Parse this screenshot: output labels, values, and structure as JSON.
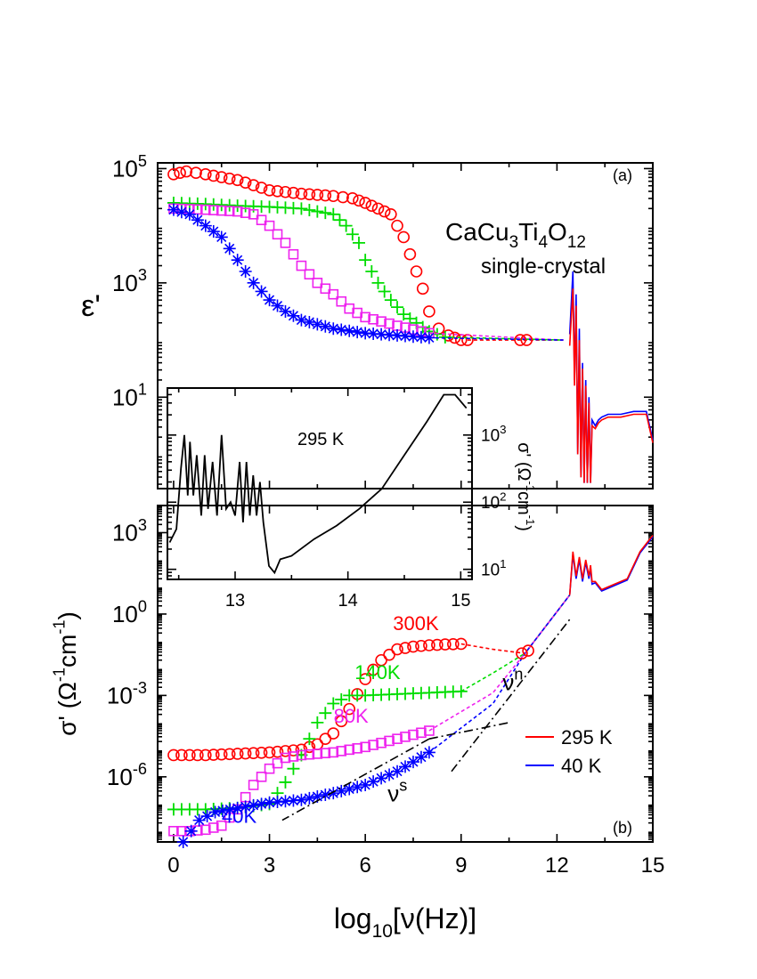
{
  "chart_data": [
    {
      "panel": "(a)",
      "type": "scatter",
      "ylabel": "ε'",
      "yscale": "log",
      "ylim_log10": [
        -0.6,
        5.1
      ],
      "yticks": [
        {
          "label": "10",
          "sup": "5",
          "log": 5
        },
        {
          "label": "10",
          "sup": "3",
          "log": 3
        },
        {
          "label": "10",
          "sup": "1",
          "log": 1
        }
      ],
      "xlim": [
        -0.5,
        15
      ],
      "xticks": [
        0,
        3,
        6,
        9,
        12,
        15
      ],
      "annotation_material": [
        "CaCu",
        "3",
        "Ti",
        "4",
        "O",
        "12"
      ],
      "annotation_sub": "single-crystal",
      "series": [
        {
          "temp": "295 K",
          "marker": "circle",
          "color": "#ff0000",
          "x": [
            0.0,
            0.4,
            1.0,
            2.0,
            3.0,
            4.0,
            5.0,
            5.6,
            6.0,
            6.4,
            6.8,
            7.0,
            7.2,
            7.4,
            7.6,
            7.8,
            8.0,
            8.3,
            8.6,
            9.0,
            9.2
          ],
          "y": [
            4.9,
            4.95,
            4.9,
            4.8,
            4.62,
            4.56,
            4.52,
            4.48,
            4.4,
            4.3,
            4.2,
            4.0,
            3.8,
            3.5,
            3.2,
            2.9,
            2.5,
            2.2,
            2.08,
            2.0,
            2.0
          ]
        },
        {
          "temp": "140 K",
          "marker": "plus",
          "color": "#00dd00",
          "x": [
            0.0,
            1.0,
            2.0,
            3.0,
            4.0,
            4.5,
            5.0,
            5.4,
            5.8,
            6.0,
            6.4,
            6.8,
            7.2,
            7.6,
            8.0,
            8.5
          ],
          "y": [
            4.4,
            4.38,
            4.35,
            4.33,
            4.3,
            4.25,
            4.2,
            4.0,
            3.7,
            3.4,
            3.0,
            2.7,
            2.45,
            2.3,
            2.15,
            2.05
          ]
        },
        {
          "temp": "80 K",
          "marker": "square",
          "color": "#ee22ee",
          "x": [
            0.0,
            1.0,
            2.0,
            2.5,
            3.0,
            3.5,
            4.0,
            4.5,
            5.0,
            5.5,
            6.0,
            7.0,
            8.0
          ],
          "y": [
            4.3,
            4.28,
            4.25,
            4.2,
            4.0,
            3.7,
            3.3,
            3.0,
            2.8,
            2.55,
            2.4,
            2.25,
            2.12
          ]
        },
        {
          "temp": "40 K",
          "marker": "star",
          "color": "#0000ff",
          "x": [
            0.0,
            0.5,
            1.0,
            1.5,
            2.0,
            2.5,
            3.0,
            3.5,
            4.0,
            5.0,
            6.0,
            7.0,
            8.0
          ],
          "y": [
            4.28,
            4.2,
            4.0,
            3.8,
            3.4,
            3.0,
            2.7,
            2.5,
            2.35,
            2.2,
            2.12,
            2.08,
            2.04
          ]
        }
      ],
      "optical_curves": [
        {
          "temp": "295 K",
          "color": "#ff0000",
          "x": [
            12.4,
            12.5,
            12.55,
            12.6,
            12.65,
            12.7,
            12.75,
            12.8,
            12.85,
            12.9,
            12.95,
            13.0,
            13.05,
            13.1,
            13.2,
            13.3,
            13.4,
            13.6,
            14.0,
            14.4,
            14.8,
            15.0
          ],
          "y": [
            1.9,
            2.9,
            1.2,
            2.6,
            0.0,
            2.0,
            -0.4,
            1.5,
            -0.5,
            1.2,
            -0.5,
            0.9,
            -0.5,
            0.5,
            0.45,
            0.55,
            0.6,
            0.65,
            0.65,
            0.7,
            0.7,
            0.2
          ]
        },
        {
          "temp": "40 K",
          "color": "#0000ff",
          "x": [
            12.4,
            12.5,
            12.55,
            12.6,
            12.65,
            12.7,
            12.75,
            12.8,
            12.85,
            12.9,
            12.95,
            13.0,
            13.05,
            13.1,
            13.2,
            13.3,
            13.4,
            13.6,
            14.0,
            14.4,
            14.8,
            15.0
          ],
          "y": [
            2.1,
            3.2,
            1.3,
            2.8,
            0.0,
            2.2,
            -0.4,
            1.6,
            -0.5,
            1.3,
            -0.5,
            1.0,
            -0.5,
            0.6,
            0.5,
            0.6,
            0.65,
            0.7,
            0.7,
            0.75,
            0.75,
            0.25
          ]
        }
      ]
    },
    {
      "panel": "(b)",
      "type": "scatter",
      "ylabel": "σ' (Ω⁻¹cm⁻¹)",
      "yscale": "log",
      "ylim_log10": [
        -8.4,
        4.0
      ],
      "yticks": [
        {
          "label": "10",
          "sup": "3",
          "log": 3
        },
        {
          "label": "10",
          "sup": "0",
          "log": 0
        },
        {
          "label": "10",
          "sup": "-3",
          "log": -3
        },
        {
          "label": "10",
          "sup": "-6",
          "log": -6
        }
      ],
      "xlabel": "log10[ν(Hz)]",
      "xlim": [
        -0.5,
        15
      ],
      "xticks": [
        0,
        3,
        6,
        9,
        12,
        15
      ],
      "temperature_labels": [
        "300K",
        "140K",
        "80K",
        "40K"
      ],
      "series": [
        {
          "temp": "300K",
          "marker": "circle",
          "color": "#ff0000",
          "x": [
            0.0,
            1.0,
            2.0,
            3.0,
            4.0,
            4.5,
            5.0,
            5.5,
            6.0,
            6.5,
            7.0,
            7.5,
            8.0,
            8.5,
            9.0
          ],
          "y": [
            -5.2,
            -5.2,
            -5.15,
            -5.1,
            -5.0,
            -4.8,
            -4.4,
            -3.5,
            -2.4,
            -1.7,
            -1.3,
            -1.2,
            -1.15,
            -1.12,
            -1.1
          ]
        },
        {
          "temp": "140K",
          "marker": "plus",
          "color": "#00dd00",
          "x": [
            0.0,
            1.0,
            2.0,
            3.0,
            3.5,
            4.0,
            4.5,
            5.0,
            5.5,
            6.0,
            7.0,
            8.0,
            9.0
          ],
          "y": [
            -7.2,
            -7.2,
            -7.15,
            -7.0,
            -6.2,
            -5.2,
            -4.0,
            -3.3,
            -3.0,
            -3.0,
            -2.95,
            -2.9,
            -2.85
          ]
        },
        {
          "temp": "80K",
          "marker": "square",
          "color": "#ee22ee",
          "x": [
            0.0,
            0.5,
            1.0,
            1.5,
            2.0,
            2.5,
            3.0,
            3.5,
            4.0,
            4.5,
            5.0,
            6.0,
            7.0,
            8.0
          ],
          "y": [
            -8.0,
            -8.0,
            -7.95,
            -7.8,
            -7.2,
            -6.3,
            -5.7,
            -5.3,
            -5.2,
            -5.15,
            -5.1,
            -4.9,
            -4.6,
            -4.3
          ]
        },
        {
          "temp": "40K",
          "marker": "star",
          "color": "#0000ff",
          "x": [
            0.3,
            0.8,
            1.3,
            2.0,
            3.0,
            4.0,
            5.0,
            6.0,
            7.0,
            8.0
          ],
          "y": [
            -8.4,
            -7.6,
            -7.3,
            -7.15,
            -6.95,
            -6.85,
            -6.6,
            -6.3,
            -5.8,
            -5.1
          ]
        }
      ],
      "optical_curves": [
        {
          "temp": "295 K",
          "color": "#ff0000",
          "x": [
            12.4,
            12.5,
            12.6,
            12.7,
            12.8,
            12.9,
            13.0,
            13.05,
            13.1,
            13.2,
            13.4,
            13.8,
            14.2,
            14.6,
            15.0
          ],
          "y": [
            0.7,
            2.3,
            1.4,
            2.1,
            1.3,
            2.0,
            1.4,
            1.8,
            1.2,
            1.2,
            0.9,
            1.1,
            1.3,
            2.3,
            2.9
          ]
        },
        {
          "temp": "40 K",
          "color": "#0000ff",
          "x": [
            12.4,
            12.5,
            12.6,
            12.7,
            12.8,
            12.9,
            13.0,
            13.05,
            13.1,
            13.2,
            13.4,
            13.8,
            14.2,
            14.6,
            15.0
          ],
          "y": [
            0.7,
            2.2,
            1.3,
            2.0,
            1.2,
            1.9,
            1.3,
            1.7,
            1.1,
            1.15,
            0.85,
            1.05,
            1.25,
            2.25,
            2.85
          ]
        }
      ],
      "legend": [
        {
          "label": "295 K",
          "color": "#ff0000"
        },
        {
          "label": "40 K",
          "color": "#0000ff"
        }
      ],
      "power_law_labels": [
        {
          "base": "ν",
          "sup": "s"
        },
        {
          "base": "ν",
          "sup": "n"
        }
      ]
    },
    {
      "panel": "inset",
      "type": "line",
      "annotation": "295 K",
      "yscale": "log",
      "ylabel": "σ' (Ω⁻¹cm⁻¹)",
      "xlim": [
        12.4,
        15.1
      ],
      "xticks": [
        13,
        14,
        15
      ],
      "yticks": [
        {
          "label": "10",
          "sup": "3",
          "log": 3
        },
        {
          "label": "10",
          "sup": "2",
          "log": 2
        },
        {
          "label": "10",
          "sup": "1",
          "log": 1
        }
      ],
      "color": "#000000",
      "x": [
        12.42,
        12.48,
        12.52,
        12.55,
        12.58,
        12.6,
        12.63,
        12.66,
        12.7,
        12.73,
        12.76,
        12.8,
        12.84,
        12.88,
        12.92,
        12.96,
        13.0,
        13.04,
        13.07,
        13.1,
        13.13,
        13.16,
        13.19,
        13.22,
        13.25,
        13.3,
        13.35,
        13.4,
        13.5,
        13.7,
        13.9,
        14.1,
        14.3,
        14.5,
        14.7,
        14.85,
        14.95,
        15.05
      ],
      "y": [
        1.4,
        1.6,
        2.5,
        3.0,
        2.1,
        2.9,
        2.1,
        2.7,
        1.8,
        2.7,
        1.9,
        2.6,
        1.8,
        3.0,
        1.9,
        2.0,
        1.8,
        2.6,
        1.7,
        2.6,
        1.8,
        2.4,
        1.8,
        2.3,
        1.7,
        1.05,
        0.95,
        1.15,
        1.2,
        1.45,
        1.65,
        1.9,
        2.2,
        2.7,
        3.2,
        3.6,
        3.6,
        3.4
      ]
    }
  ]
}
